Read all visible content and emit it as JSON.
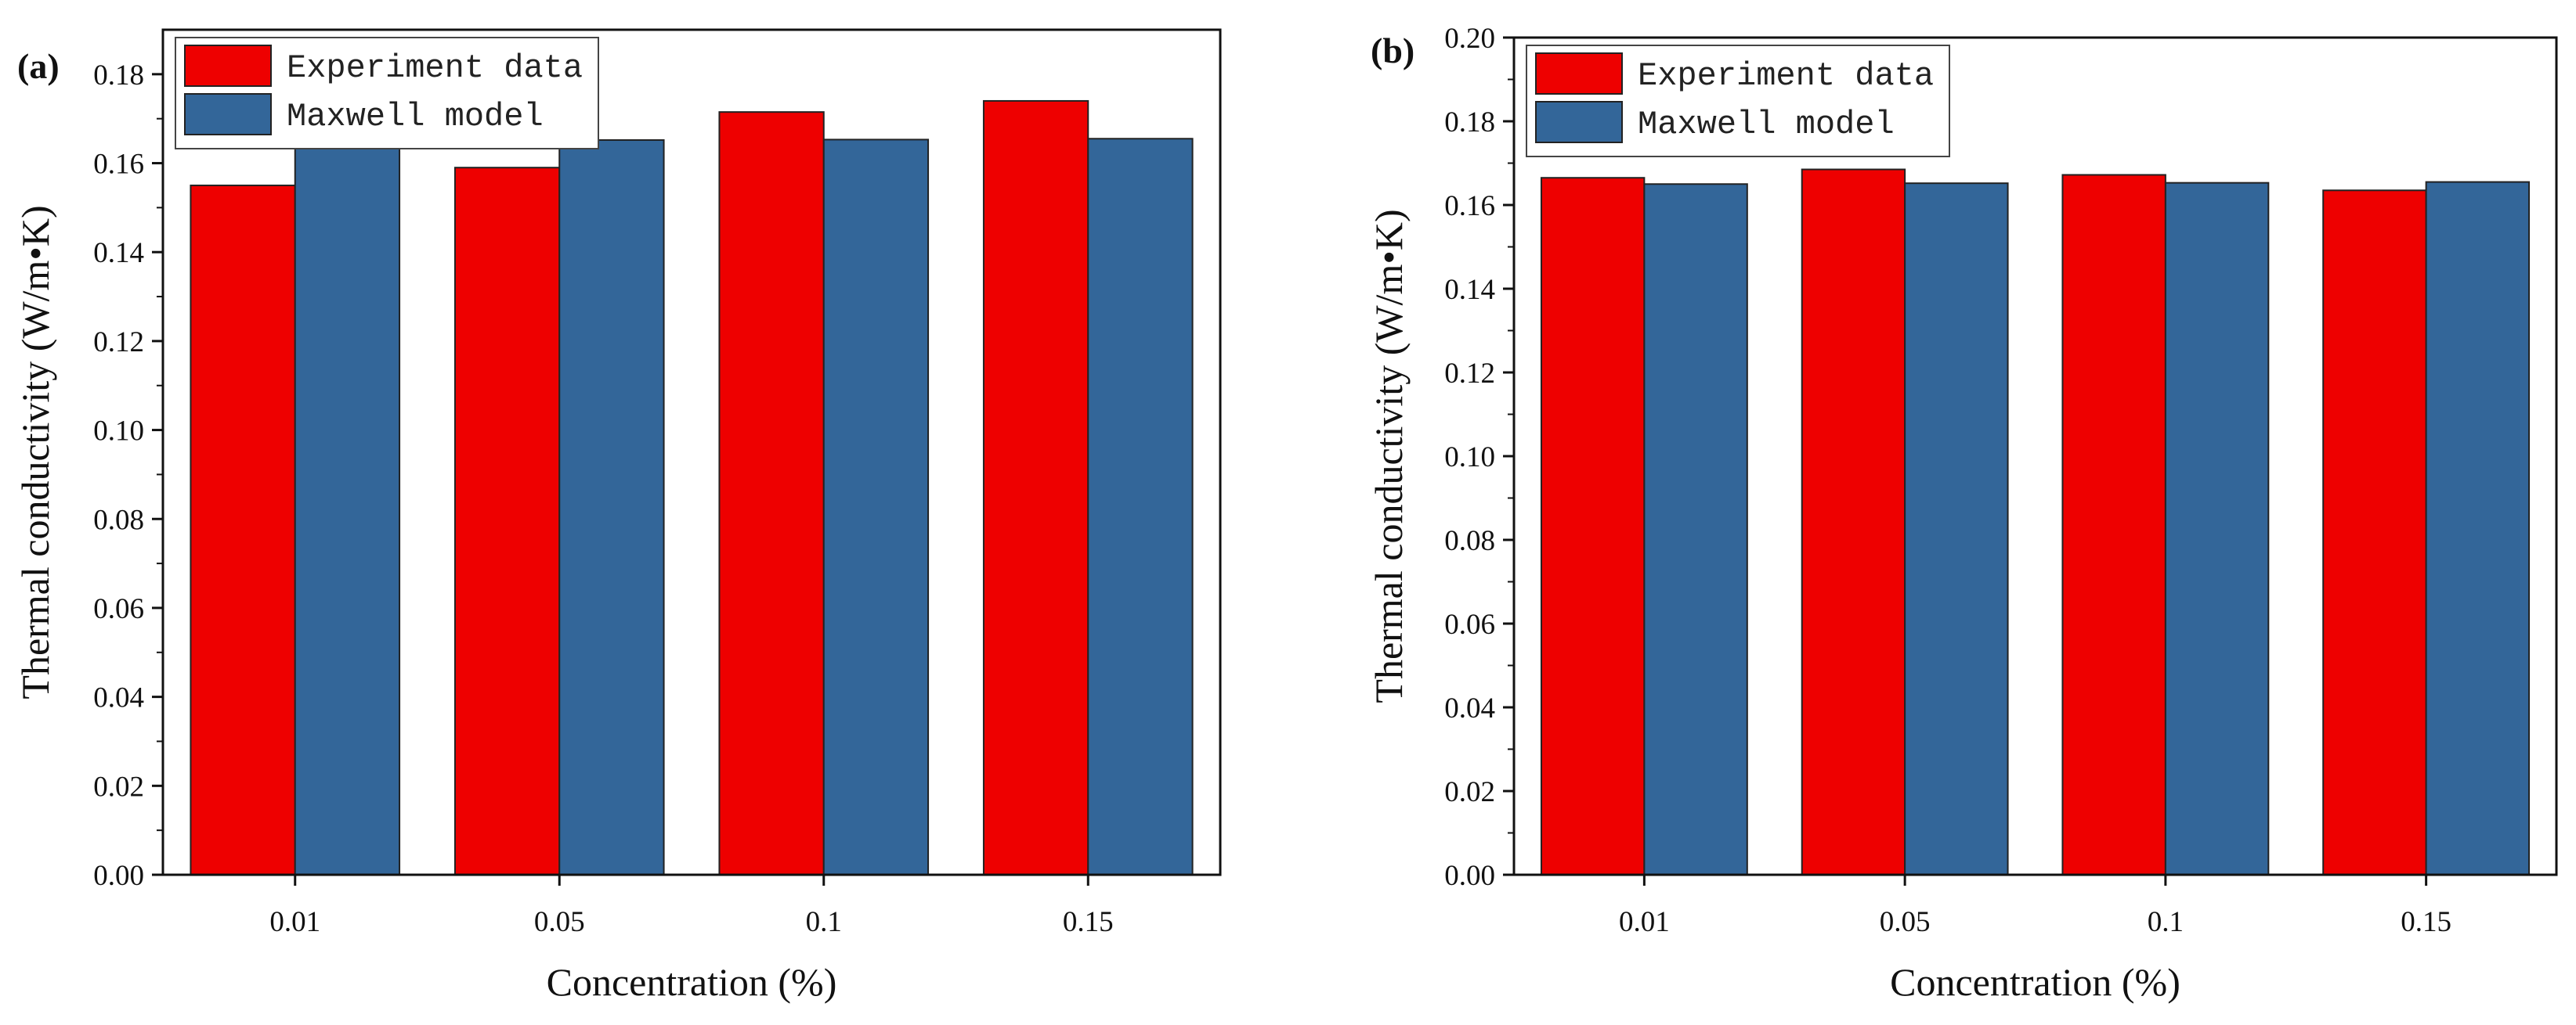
{
  "chart_data": [
    {
      "type": "bar",
      "panel_label": "(a)",
      "categories": [
        "0.01",
        "0.05",
        "0.1",
        "0.15"
      ],
      "series": [
        {
          "name": "Experiment data",
          "color": "#ee0000",
          "values": [
            0.155,
            0.159,
            0.1715,
            0.174
          ]
        },
        {
          "name": "Maxwell model",
          "color": "#336699",
          "values": [
            0.165,
            0.1652,
            0.1653,
            0.1655
          ]
        }
      ],
      "xlabel": "Concentration (%)",
      "ylabel": "Thermal conductivity (W/m•K)",
      "ylim": [
        0,
        0.19
      ],
      "yticks": [
        "0.00",
        "0.02",
        "0.04",
        "0.06",
        "0.08",
        "0.10",
        "0.12",
        "0.14",
        "0.16",
        "0.18"
      ],
      "legend": "top-left",
      "grid": false
    },
    {
      "type": "bar",
      "panel_label": "(b)",
      "categories": [
        "0.01",
        "0.05",
        "0.1",
        "0.15"
      ],
      "series": [
        {
          "name": "Experiment data",
          "color": "#ee0000",
          "values": [
            0.1665,
            0.1685,
            0.1672,
            0.1635
          ]
        },
        {
          "name": "Maxwell model",
          "color": "#336699",
          "values": [
            0.165,
            0.1652,
            0.1653,
            0.1655
          ]
        }
      ],
      "xlabel": "Concentration (%)",
      "ylabel": "Thermal conductivity (W/m•K)",
      "ylim": [
        0,
        0.2
      ],
      "yticks": [
        "0.00",
        "0.02",
        "0.04",
        "0.06",
        "0.08",
        "0.10",
        "0.12",
        "0.14",
        "0.16",
        "0.18",
        "0.20"
      ],
      "legend": "top-left",
      "grid": false
    }
  ]
}
